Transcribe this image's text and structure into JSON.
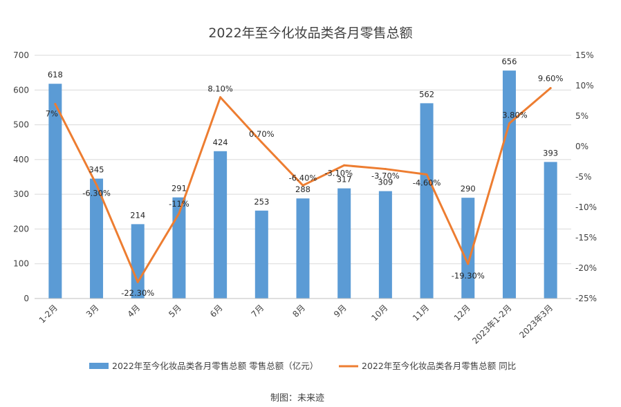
{
  "chart_data": {
    "type": "bar+line",
    "title": "2022年至今化妆品类各月零售总额",
    "categories": [
      "1-2月",
      "3月",
      "4月",
      "5月",
      "6月",
      "7月",
      "8月",
      "9月",
      "10月",
      "11月",
      "12月",
      "2023年1-2月",
      "2023年3月"
    ],
    "series": [
      {
        "name": "2022年至今化妆品类各月零售总额 零售总额（亿元）",
        "type": "bar",
        "axis": "left",
        "color": "#5B9BD5",
        "values": [
          618,
          345,
          214,
          291,
          424,
          253,
          288,
          317,
          309,
          562,
          290,
          656,
          393
        ],
        "labels": [
          "618",
          "345",
          "214",
          "291",
          "424",
          "253",
          "288",
          "317",
          "309",
          "562",
          "290",
          "656",
          "393"
        ]
      },
      {
        "name": "2022年至今化妆品类各月零售总额 同比",
        "type": "line",
        "axis": "right",
        "color": "#ED7D31",
        "values": [
          7,
          -6.3,
          -22.3,
          -11,
          8.1,
          0.7,
          -6.4,
          -3.1,
          -3.7,
          -4.6,
          -19.3,
          3.8,
          9.6
        ],
        "labels": [
          "7%",
          "-6.30%",
          "-22.30%",
          "-11%",
          "8.10%",
          "0.70%",
          "-6.40%",
          "-3.10%",
          "-3.70%",
          "-4.60%",
          "-19.30%",
          "3.80%",
          "9.60%"
        ]
      }
    ],
    "y_left": {
      "range": [
        0,
        700
      ],
      "ticks": [
        0,
        100,
        200,
        300,
        400,
        500,
        600,
        700
      ],
      "tick_labels": [
        "0",
        "100",
        "200",
        "300",
        "400",
        "500",
        "600",
        "700"
      ]
    },
    "y_right": {
      "range": [
        -25,
        15
      ],
      "ticks": [
        -25,
        -20,
        -15,
        -10,
        -5,
        0,
        5,
        10,
        15
      ],
      "tick_labels": [
        "-25%",
        "-20%",
        "-15%",
        "-10%",
        "-5%",
        "0%",
        "5%",
        "10%",
        "15%"
      ]
    },
    "grid": true,
    "legend": "bottom",
    "source_note": "制图：未来迹"
  }
}
